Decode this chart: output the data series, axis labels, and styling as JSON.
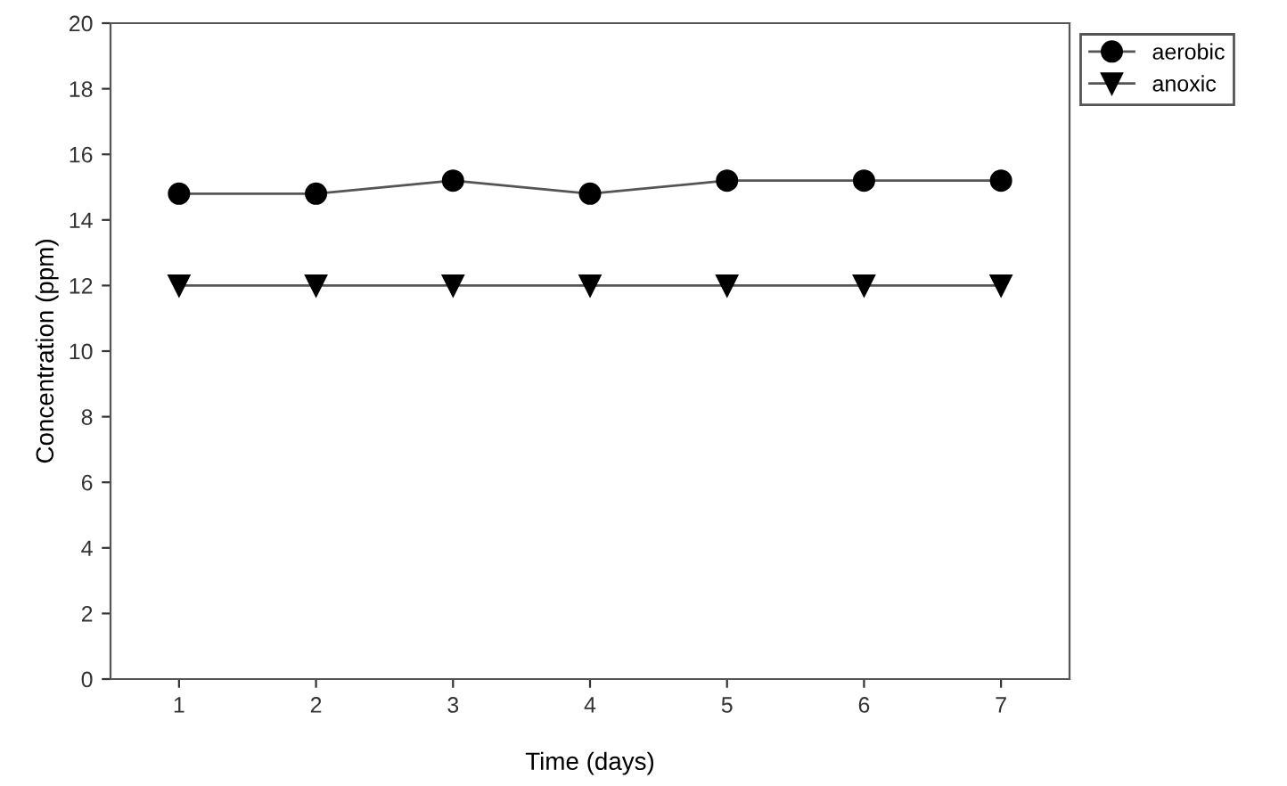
{
  "chart_data": {
    "type": "line",
    "xlabel": "Time (days)",
    "ylabel": "Concentration (ppm)",
    "x": [
      1,
      2,
      3,
      4,
      5,
      6,
      7
    ],
    "series": [
      {
        "name": "aerobic",
        "color": "#000000",
        "marker": "circle",
        "values": [
          14.8,
          14.8,
          15.2,
          14.8,
          15.2,
          15.2,
          15.2
        ]
      },
      {
        "name": "anoxic",
        "color": "#000000",
        "marker": "triangle",
        "values": [
          12,
          12,
          12,
          12,
          12,
          12,
          12
        ]
      }
    ],
    "xlim": [
      0.5,
      7.5
    ],
    "xticks": [
      1,
      2,
      3,
      4,
      5,
      6,
      7
    ],
    "ylim": [
      0,
      20
    ],
    "yticks": [
      0,
      2,
      4,
      6,
      8,
      10,
      12,
      14,
      16,
      18,
      20
    ],
    "grid": false,
    "legend": "top right",
    "line_style": "solid"
  }
}
